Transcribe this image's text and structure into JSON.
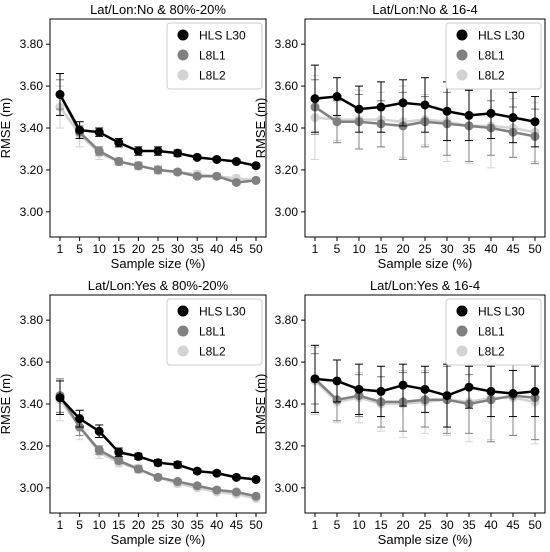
{
  "chart_data": [
    {
      "type": "line",
      "title": "Lat/Lon:No & 80%-20%",
      "xlabel": "Sample size (%)",
      "ylabel": "RMSE (m)",
      "x": [
        1,
        5,
        10,
        15,
        20,
        25,
        30,
        35,
        40,
        45,
        50
      ],
      "yticks": [
        "3.00",
        "3.20",
        "3.40",
        "3.60",
        "3.80"
      ],
      "ylim": [
        2.88,
        3.92
      ],
      "legend_position": "top-right",
      "series": [
        {
          "name": "HLS L30",
          "color": "#000000",
          "values": [
            3.56,
            3.39,
            3.38,
            3.33,
            3.29,
            3.29,
            3.28,
            3.26,
            3.25,
            3.24,
            3.22
          ],
          "err": [
            0.1,
            0.04,
            0.02,
            0.02,
            0.02,
            0.02,
            0.015,
            0.01,
            0.01,
            0.01,
            0.01
          ]
        },
        {
          "name": "L8L1",
          "color": "#808080",
          "values": [
            3.56,
            3.38,
            3.29,
            3.24,
            3.22,
            3.2,
            3.19,
            3.17,
            3.17,
            3.14,
            3.15
          ],
          "err": [
            0.07,
            0.03,
            0.02,
            0.015,
            0.015,
            0.015,
            0.01,
            0.01,
            0.01,
            0.01,
            0.01
          ]
        },
        {
          "name": "L8L2",
          "color": "#d3d3d3",
          "values": [
            3.5,
            3.37,
            3.28,
            3.24,
            3.22,
            3.2,
            3.19,
            3.18,
            3.17,
            3.16,
            3.15
          ],
          "err": [
            0.1,
            0.06,
            0.03,
            0.02,
            0.02,
            0.02,
            0.015,
            0.015,
            0.015,
            0.015,
            0.01
          ]
        }
      ]
    },
    {
      "type": "line",
      "title": "Lat/Lon:No & 16-4",
      "xlabel": "Sample size (%)",
      "ylabel": "RMSE (m)",
      "x": [
        1,
        5,
        10,
        15,
        20,
        25,
        30,
        35,
        40,
        45,
        50
      ],
      "yticks": [
        "3.00",
        "3.20",
        "3.40",
        "3.60",
        "3.80"
      ],
      "ylim": [
        2.88,
        3.92
      ],
      "legend_position": "top-right",
      "series": [
        {
          "name": "HLS L30",
          "color": "#000000",
          "values": [
            3.54,
            3.55,
            3.49,
            3.5,
            3.52,
            3.51,
            3.48,
            3.46,
            3.47,
            3.45,
            3.43
          ],
          "err": [
            0.16,
            0.09,
            0.11,
            0.12,
            0.11,
            0.13,
            0.14,
            0.12,
            0.12,
            0.12,
            0.12
          ]
        },
        {
          "name": "L8L1",
          "color": "#808080",
          "values": [
            3.5,
            3.43,
            3.43,
            3.42,
            3.41,
            3.43,
            3.42,
            3.41,
            3.4,
            3.38,
            3.36
          ],
          "err": [
            0.13,
            0.1,
            0.13,
            0.11,
            0.16,
            0.12,
            0.15,
            0.17,
            0.13,
            0.12,
            0.13
          ]
        },
        {
          "name": "L8L2",
          "color": "#d3d3d3",
          "values": [
            3.45,
            3.44,
            3.44,
            3.44,
            3.43,
            3.44,
            3.43,
            3.41,
            3.41,
            3.4,
            3.38
          ],
          "err": [
            0.2,
            0.1,
            0.14,
            0.13,
            0.17,
            0.12,
            0.19,
            0.18,
            0.2,
            0.14,
            0.14
          ]
        }
      ]
    },
    {
      "type": "line",
      "title": "Lat/Lon:Yes & 80%-20%",
      "xlabel": "Sample size (%)",
      "ylabel": "RMSE (m)",
      "x": [
        1,
        5,
        10,
        15,
        20,
        25,
        30,
        35,
        40,
        45,
        50
      ],
      "yticks": [
        "3.00",
        "3.20",
        "3.40",
        "3.60",
        "3.80"
      ],
      "ylim": [
        2.88,
        3.92
      ],
      "legend_position": "top-right",
      "series": [
        {
          "name": "HLS L30",
          "color": "#000000",
          "values": [
            3.43,
            3.33,
            3.27,
            3.17,
            3.15,
            3.12,
            3.11,
            3.08,
            3.07,
            3.05,
            3.04
          ],
          "err": [
            0.08,
            0.04,
            0.03,
            0.02,
            0.015,
            0.015,
            0.015,
            0.01,
            0.01,
            0.01,
            0.01
          ]
        },
        {
          "name": "L8L1",
          "color": "#808080",
          "values": [
            3.44,
            3.29,
            3.18,
            3.13,
            3.09,
            3.05,
            3.03,
            3.01,
            2.99,
            2.98,
            2.96
          ],
          "err": [
            0.08,
            0.04,
            0.02,
            0.015,
            0.015,
            0.01,
            0.01,
            0.01,
            0.01,
            0.01,
            0.01
          ]
        },
        {
          "name": "L8L2",
          "color": "#d3d3d3",
          "values": [
            3.42,
            3.29,
            3.17,
            3.12,
            3.09,
            3.05,
            3.02,
            3.0,
            2.98,
            2.97,
            2.95
          ],
          "err": [
            0.1,
            0.06,
            0.03,
            0.02,
            0.02,
            0.015,
            0.015,
            0.01,
            0.01,
            0.01,
            0.01
          ]
        }
      ]
    },
    {
      "type": "line",
      "title": "Lat/Lon:Yes & 16-4",
      "xlabel": "Sample size (%)",
      "ylabel": "RMSE (m)",
      "x": [
        1,
        5,
        10,
        15,
        20,
        25,
        30,
        35,
        40,
        45,
        50
      ],
      "yticks": [
        "3.00",
        "3.20",
        "3.40",
        "3.60",
        "3.80"
      ],
      "ylim": [
        2.88,
        3.92
      ],
      "legend_position": "top-right",
      "series": [
        {
          "name": "HLS L30",
          "color": "#000000",
          "values": [
            3.52,
            3.51,
            3.47,
            3.46,
            3.49,
            3.47,
            3.44,
            3.48,
            3.46,
            3.45,
            3.46
          ],
          "err": [
            0.16,
            0.1,
            0.12,
            0.12,
            0.1,
            0.11,
            0.15,
            0.1,
            0.12,
            0.11,
            0.12
          ]
        },
        {
          "name": "L8L1",
          "color": "#808080",
          "values": [
            3.52,
            3.42,
            3.44,
            3.41,
            3.41,
            3.42,
            3.42,
            3.4,
            3.42,
            3.44,
            3.43
          ],
          "err": [
            0.12,
            0.1,
            0.1,
            0.12,
            0.14,
            0.13,
            0.16,
            0.14,
            0.2,
            0.19,
            0.2
          ]
        },
        {
          "name": "L8L2",
          "color": "#d3d3d3",
          "values": [
            3.51,
            3.41,
            3.43,
            3.4,
            3.4,
            3.41,
            3.42,
            3.41,
            3.43,
            3.43,
            3.41
          ],
          "err": [
            0.16,
            0.1,
            0.12,
            0.13,
            0.16,
            0.15,
            0.17,
            0.19,
            0.2,
            0.18,
            0.2
          ]
        }
      ]
    }
  ]
}
